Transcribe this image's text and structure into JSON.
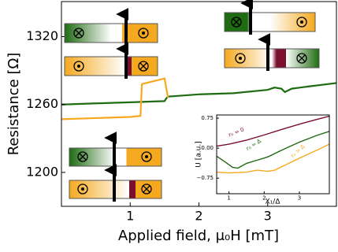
{
  "chart_data": [
    {
      "type": "line",
      "xlabel": "Applied field, μ₀H [mT]",
      "ylabel": "Resistance [Ω]",
      "xlim": [
        0,
        4
      ],
      "ylim": [
        1170,
        1351
      ],
      "xticks": [
        1,
        2,
        3
      ],
      "yticks": [
        1200,
        1260,
        1320
      ],
      "series": [
        {
          "color": "#1f6b12",
          "x": [
            0,
            0.5,
            1,
            1.5,
            1.52,
            1.55,
            2,
            2.5,
            3,
            3.1,
            3.2,
            3.25,
            3.35,
            3.6,
            4
          ],
          "values": [
            1260,
            1261,
            1262,
            1263,
            1265,
            1267,
            1269,
            1270,
            1273,
            1275,
            1274,
            1271,
            1274,
            1276,
            1279
          ]
        },
        {
          "color": "#f5a91f",
          "x": [
            0,
            0.5,
            1,
            1.15,
            1.17,
            1.3,
            1.5,
            1.55
          ],
          "values": [
            1247,
            1248,
            1249,
            1250,
            1278,
            1280,
            1283,
            1266
          ]
        }
      ]
    },
    {
      "type": "line",
      "xlabel": "X₁/Δ",
      "ylabel": "U [a.u.]",
      "xlim": [
        0.65,
        3.85
      ],
      "ylim": [
        -1.14,
        0.83
      ],
      "xticks": [
        1,
        2,
        3
      ],
      "yticks": [
        {
          "value": -0.75,
          "label": "−0.75"
        },
        {
          "value": 0,
          "label": "0.00"
        },
        0.75
      ],
      "series": [
        {
          "name": "r₀ = 0",
          "color": "#7a0f2e",
          "x": [
            0.65,
            1,
            1.5,
            2,
            2.5,
            3,
            3.5,
            3.85
          ],
          "values": [
            0.05,
            0.1,
            0.2,
            0.33,
            0.47,
            0.6,
            0.72,
            0.8
          ]
        },
        {
          "name": "r₀ ≈ Δ",
          "color": "#1f6b12",
          "x": [
            0.65,
            0.9,
            1.1,
            1.25,
            1.5,
            1.8,
            2.1,
            2.5,
            3,
            3.5,
            3.85
          ],
          "values": [
            -0.2,
            -0.35,
            -0.48,
            -0.5,
            -0.38,
            -0.3,
            -0.22,
            -0.05,
            0.15,
            0.32,
            0.42
          ]
        },
        {
          "name": "r₀ > Δ",
          "color": "#f5a91f",
          "x": [
            0.65,
            1,
            1.5,
            1.8,
            2.1,
            2.3,
            2.6,
            3,
            3.5,
            3.85
          ],
          "values": [
            -0.6,
            -0.62,
            -0.6,
            -0.55,
            -0.58,
            -0.55,
            -0.42,
            -0.25,
            -0.05,
            0.1
          ]
        }
      ]
    }
  ]
}
